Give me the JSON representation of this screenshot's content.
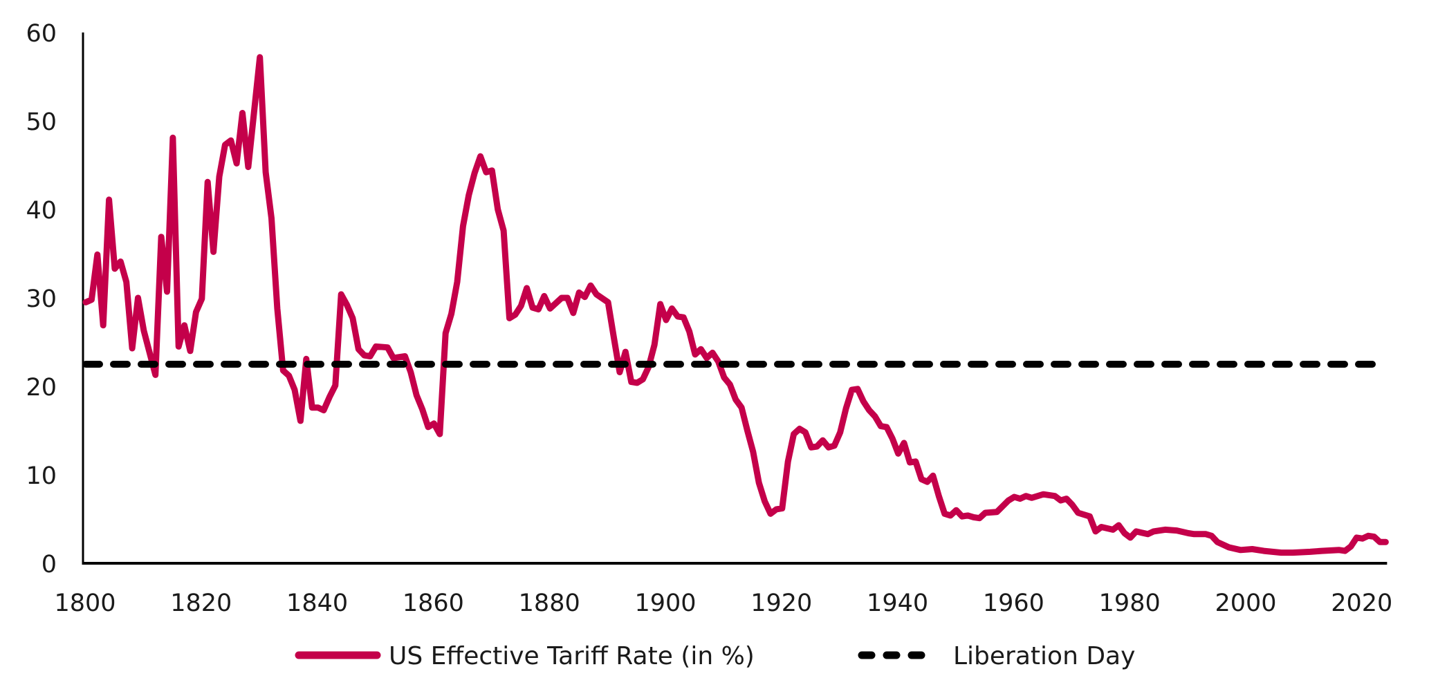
{
  "chart_data": {
    "type": "line",
    "title": "",
    "xlabel": "",
    "ylabel": "",
    "xlim": [
      1800,
      2024
    ],
    "ylim": [
      0,
      60
    ],
    "x_ticks": [
      "1800",
      "1820",
      "1840",
      "1860",
      "1880",
      "1900",
      "1920",
      "1940",
      "1960",
      "1980",
      "2000",
      "2020"
    ],
    "y_ticks": [
      "0",
      "10",
      "20",
      "30",
      "40",
      "50",
      "60"
    ],
    "grid": false,
    "legend_position": "bottom",
    "series": [
      {
        "name": "US Effective Tariff Rate (in %)",
        "color": "#C4004A",
        "style": "solid",
        "x": [
          1800,
          1801,
          1802,
          1803,
          1804,
          1805,
          1806,
          1807,
          1808,
          1809,
          1810,
          1812,
          1813,
          1814,
          1815,
          1816,
          1817,
          1818,
          1819,
          1820,
          1821,
          1822,
          1823,
          1824,
          1825,
          1826,
          1827,
          1828,
          1830,
          1831,
          1832,
          1833,
          1834,
          1835,
          1836,
          1837,
          1838,
          1839,
          1840,
          1841,
          1842,
          1843,
          1844,
          1845,
          1846,
          1847,
          1848,
          1849,
          1850,
          1852,
          1853,
          1855,
          1856,
          1857,
          1858,
          1859,
          1860,
          1861,
          1862,
          1863,
          1864,
          1865,
          1866,
          1867,
          1868,
          1869,
          1870,
          1871,
          1872,
          1873,
          1874,
          1875,
          1876,
          1877,
          1878,
          1879,
          1880,
          1882,
          1883,
          1884,
          1885,
          1886,
          1887,
          1888,
          1890,
          1891,
          1892,
          1893,
          1894,
          1895,
          1896,
          1897,
          1898,
          1899,
          1900,
          1901,
          1902,
          1903,
          1904,
          1905,
          1906,
          1907,
          1908,
          1909,
          1910,
          1911,
          1912,
          1913,
          1914,
          1915,
          1916,
          1917,
          1918,
          1919,
          1920,
          1921,
          1922,
          1923,
          1924,
          1925,
          1926,
          1927,
          1928,
          1929,
          1930,
          1931,
          1932,
          1933,
          1934,
          1935,
          1936,
          1937,
          1938,
          1939,
          1940,
          1941,
          1942,
          1943,
          1944,
          1945,
          1946,
          1947,
          1948,
          1949,
          1950,
          1951,
          1952,
          1953,
          1954,
          1955,
          1957,
          1959,
          1960,
          1961,
          1962,
          1963,
          1965,
          1967,
          1968,
          1969,
          1970,
          1971,
          1973,
          1974,
          1975,
          1977,
          1978,
          1979,
          1980,
          1981,
          1983,
          1984,
          1986,
          1988,
          1990,
          1991,
          1993,
          1994,
          1995,
          1997,
          1999,
          2001,
          2003,
          2006,
          2008,
          2011,
          2013,
          2016,
          2017,
          2018,
          2019,
          2020,
          2021,
          2022,
          2023,
          2024
        ],
        "values": [
          29.5,
          29.8,
          34.9,
          26.9,
          41.1,
          33.3,
          34.1,
          31.8,
          24.3,
          30.0,
          26.3,
          21.3,
          36.9,
          30.7,
          48.1,
          24.5,
          26.9,
          24.0,
          28.4,
          29.9,
          43.1,
          35.2,
          43.7,
          47.3,
          47.8,
          45.2,
          50.9,
          44.8,
          57.2,
          44.2,
          39.0,
          28.8,
          21.8,
          21.2,
          19.6,
          16.1,
          23.1,
          17.6,
          17.6,
          17.3,
          18.8,
          20.1,
          30.4,
          29.2,
          27.7,
          24.2,
          23.5,
          23.4,
          24.5,
          24.4,
          23.2,
          23.4,
          21.6,
          19.0,
          17.4,
          15.4,
          15.8,
          14.6,
          26.0,
          28.2,
          31.8,
          38.1,
          41.6,
          44.1,
          46.0,
          44.2,
          44.4,
          40.0,
          37.6,
          27.7,
          28.1,
          29.1,
          31.1,
          28.9,
          28.7,
          30.2,
          28.8,
          30.0,
          30.0,
          28.3,
          30.6,
          30.1,
          31.4,
          30.4,
          29.5,
          25.5,
          21.6,
          23.9,
          20.5,
          20.4,
          20.8,
          22.2,
          24.7,
          29.3,
          27.5,
          28.8,
          27.9,
          27.8,
          26.2,
          23.6,
          24.2,
          23.2,
          23.8,
          22.8,
          21.0,
          20.2,
          18.5,
          17.6,
          15.0,
          12.6,
          9.1,
          7.0,
          5.6,
          6.1,
          6.2,
          11.5,
          14.6,
          15.2,
          14.8,
          13.1,
          13.2,
          13.9,
          13.1,
          13.3,
          14.8,
          17.5,
          19.6,
          19.7,
          18.3,
          17.3,
          16.6,
          15.5,
          15.4,
          14.1,
          12.4,
          13.6,
          11.4,
          11.5,
          9.5,
          9.2,
          9.9,
          7.6,
          5.6,
          5.4,
          6.0,
          5.3,
          5.4,
          5.2,
          5.1,
          5.7,
          5.8,
          7.1,
          7.5,
          7.3,
          7.6,
          7.4,
          7.8,
          7.6,
          7.1,
          7.3,
          6.6,
          5.7,
          5.3,
          3.6,
          4.1,
          3.8,
          4.3,
          3.4,
          2.9,
          3.6,
          3.3,
          3.6,
          3.8,
          3.7,
          3.4,
          3.3,
          3.3,
          3.1,
          2.4,
          1.8,
          1.5,
          1.6,
          1.4,
          1.2,
          1.2,
          1.3,
          1.4,
          1.5,
          1.4,
          1.9,
          2.9,
          2.8,
          3.1,
          3.0,
          2.4,
          2.4
        ]
      },
      {
        "name": "Liberation Day",
        "color": "#000000",
        "style": "dashed",
        "x": [
          1800,
          2024
        ],
        "values": [
          22.5,
          22.5
        ]
      }
    ]
  }
}
